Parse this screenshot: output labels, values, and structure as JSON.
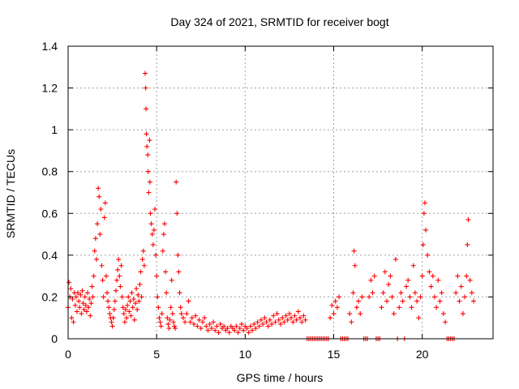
{
  "chart_data": {
    "type": "scatter",
    "title": "Day 324 of 2021, SRMTID for receiver bogt",
    "xlabel": "GPS time / hours",
    "ylabel": "SRMTID / TECUs",
    "xlim": [
      0,
      24
    ],
    "ylim": [
      0,
      1.4
    ],
    "grid": true,
    "marker": "+",
    "color": "#ff0000",
    "xticks": [
      0,
      5,
      10,
      15,
      20
    ],
    "xtick_labels": [
      "0",
      "5",
      "10",
      "15",
      "20"
    ],
    "yticks": [
      0,
      0.2,
      0.4,
      0.6,
      0.8,
      1.0,
      1.2,
      1.4
    ],
    "ytick_labels": [
      "0",
      "0.2",
      "0.4",
      "0.6",
      "0.8",
      "1",
      "1.2",
      "1.4"
    ],
    "series": [
      {
        "name": "SRMTID",
        "points": [
          [
            0.0,
            0.15
          ],
          [
            0.05,
            0.27
          ],
          [
            0.1,
            0.2
          ],
          [
            0.15,
            0.24
          ],
          [
            0.2,
            0.1
          ],
          [
            0.25,
            0.19
          ],
          [
            0.3,
            0.08
          ],
          [
            0.35,
            0.22
          ],
          [
            0.4,
            0.16
          ],
          [
            0.45,
            0.2
          ],
          [
            0.5,
            0.13
          ],
          [
            0.55,
            0.22
          ],
          [
            0.6,
            0.18
          ],
          [
            0.65,
            0.15
          ],
          [
            0.7,
            0.21
          ],
          [
            0.75,
            0.12
          ],
          [
            0.8,
            0.23
          ],
          [
            0.85,
            0.17
          ],
          [
            0.9,
            0.14
          ],
          [
            0.95,
            0.2
          ],
          [
            1.0,
            0.16
          ],
          [
            1.05,
            0.13
          ],
          [
            1.1,
            0.22
          ],
          [
            1.15,
            0.15
          ],
          [
            1.2,
            0.19
          ],
          [
            1.25,
            0.11
          ],
          [
            1.3,
            0.17
          ],
          [
            1.35,
            0.25
          ],
          [
            1.4,
            0.2
          ],
          [
            1.45,
            0.3
          ],
          [
            1.5,
            0.42
          ],
          [
            1.55,
            0.48
          ],
          [
            1.6,
            0.38
          ],
          [
            1.65,
            0.55
          ],
          [
            1.7,
            0.72
          ],
          [
            1.75,
            0.68
          ],
          [
            1.8,
            0.5
          ],
          [
            1.85,
            0.62
          ],
          [
            1.9,
            0.35
          ],
          [
            1.95,
            0.28
          ],
          [
            2.0,
            0.2
          ],
          [
            2.05,
            0.58
          ],
          [
            2.1,
            0.65
          ],
          [
            2.15,
            0.3
          ],
          [
            2.2,
            0.22
          ],
          [
            2.25,
            0.18
          ],
          [
            2.3,
            0.15
          ],
          [
            2.35,
            0.12
          ],
          [
            2.4,
            0.1
          ],
          [
            2.45,
            0.08
          ],
          [
            2.5,
            0.06
          ],
          [
            2.55,
            0.1
          ],
          [
            2.6,
            0.14
          ],
          [
            2.65,
            0.18
          ],
          [
            2.7,
            0.23
          ],
          [
            2.75,
            0.28
          ],
          [
            2.8,
            0.33
          ],
          [
            2.85,
            0.38
          ],
          [
            2.9,
            0.3
          ],
          [
            2.95,
            0.25
          ],
          [
            3.0,
            0.35
          ],
          [
            3.05,
            0.2
          ],
          [
            3.1,
            0.15
          ],
          [
            3.15,
            0.12
          ],
          [
            3.2,
            0.08
          ],
          [
            3.25,
            0.14
          ],
          [
            3.3,
            0.1
          ],
          [
            3.35,
            0.16
          ],
          [
            3.4,
            0.2
          ],
          [
            3.45,
            0.13
          ],
          [
            3.5,
            0.18
          ],
          [
            3.55,
            0.11
          ],
          [
            3.6,
            0.22
          ],
          [
            3.65,
            0.15
          ],
          [
            3.7,
            0.19
          ],
          [
            3.75,
            0.09
          ],
          [
            3.8,
            0.17
          ],
          [
            3.85,
            0.24
          ],
          [
            3.9,
            0.14
          ],
          [
            3.95,
            0.21
          ],
          [
            4.0,
            0.18
          ],
          [
            4.05,
            0.26
          ],
          [
            4.1,
            0.32
          ],
          [
            4.15,
            0.2
          ],
          [
            4.2,
            0.38
          ],
          [
            4.25,
            0.42
          ],
          [
            4.3,
            0.35
          ],
          [
            4.35,
            1.27
          ],
          [
            4.38,
            1.2
          ],
          [
            4.4,
            1.1
          ],
          [
            4.42,
            0.98
          ],
          [
            4.45,
            0.92
          ],
          [
            4.5,
            0.88
          ],
          [
            4.52,
            0.8
          ],
          [
            4.55,
            0.7
          ],
          [
            4.6,
            0.95
          ],
          [
            4.62,
            0.75
          ],
          [
            4.65,
            0.6
          ],
          [
            4.7,
            0.55
          ],
          [
            4.75,
            0.5
          ],
          [
            4.8,
            0.45
          ],
          [
            4.85,
            0.52
          ],
          [
            4.9,
            0.62
          ],
          [
            4.95,
            0.4
          ],
          [
            5.0,
            0.3
          ],
          [
            5.05,
            0.2
          ],
          [
            5.1,
            0.15
          ],
          [
            5.15,
            0.1
          ],
          [
            5.2,
            0.08
          ],
          [
            5.25,
            0.06
          ],
          [
            5.3,
            0.12
          ],
          [
            5.35,
            0.42
          ],
          [
            5.4,
            0.5
          ],
          [
            5.45,
            0.55
          ],
          [
            5.5,
            0.32
          ],
          [
            5.55,
            0.22
          ],
          [
            5.6,
            0.1
          ],
          [
            5.65,
            0.07
          ],
          [
            5.7,
            0.05
          ],
          [
            5.75,
            0.09
          ],
          [
            5.8,
            0.15
          ],
          [
            5.85,
            0.28
          ],
          [
            5.9,
            0.12
          ],
          [
            5.95,
            0.08
          ],
          [
            6.0,
            0.06
          ],
          [
            6.05,
            0.05
          ],
          [
            6.1,
            0.75
          ],
          [
            6.15,
            0.6
          ],
          [
            6.2,
            0.4
          ],
          [
            6.25,
            0.32
          ],
          [
            6.3,
            0.22
          ],
          [
            6.35,
            0.15
          ],
          [
            6.4,
            0.12
          ],
          [
            6.5,
            0.1
          ],
          [
            6.6,
            0.08
          ],
          [
            6.7,
            0.12
          ],
          [
            6.8,
            0.18
          ],
          [
            6.9,
            0.08
          ],
          [
            7.0,
            0.1
          ],
          [
            7.1,
            0.07
          ],
          [
            7.2,
            0.11
          ],
          [
            7.3,
            0.06
          ],
          [
            7.4,
            0.09
          ],
          [
            7.5,
            0.05
          ],
          [
            7.6,
            0.08
          ],
          [
            7.7,
            0.1
          ],
          [
            7.8,
            0.06
          ],
          [
            7.9,
            0.04
          ],
          [
            8.0,
            0.07
          ],
          [
            8.1,
            0.05
          ],
          [
            8.2,
            0.08
          ],
          [
            8.3,
            0.04
          ],
          [
            8.4,
            0.06
          ],
          [
            8.5,
            0.03
          ],
          [
            8.6,
            0.07
          ],
          [
            8.7,
            0.05
          ],
          [
            8.8,
            0.06
          ],
          [
            8.9,
            0.04
          ],
          [
            9.0,
            0.05
          ],
          [
            9.1,
            0.03
          ],
          [
            9.2,
            0.06
          ],
          [
            9.3,
            0.05
          ],
          [
            9.4,
            0.04
          ],
          [
            9.5,
            0.06
          ],
          [
            9.6,
            0.03
          ],
          [
            9.7,
            0.05
          ],
          [
            9.8,
            0.07
          ],
          [
            9.9,
            0.04
          ],
          [
            10.0,
            0.06
          ],
          [
            10.1,
            0.05
          ],
          [
            10.2,
            0.03
          ],
          [
            10.3,
            0.06
          ],
          [
            10.4,
            0.04
          ],
          [
            10.5,
            0.07
          ],
          [
            10.6,
            0.05
          ],
          [
            10.7,
            0.08
          ],
          [
            10.8,
            0.06
          ],
          [
            10.9,
            0.09
          ],
          [
            11.0,
            0.07
          ],
          [
            11.1,
            0.1
          ],
          [
            11.2,
            0.08
          ],
          [
            11.3,
            0.06
          ],
          [
            11.4,
            0.09
          ],
          [
            11.5,
            0.07
          ],
          [
            11.6,
            0.11
          ],
          [
            11.7,
            0.08
          ],
          [
            11.8,
            0.12
          ],
          [
            11.9,
            0.09
          ],
          [
            12.0,
            0.07
          ],
          [
            12.1,
            0.1
          ],
          [
            12.2,
            0.08
          ],
          [
            12.3,
            0.11
          ],
          [
            12.4,
            0.09
          ],
          [
            12.5,
            0.12
          ],
          [
            12.6,
            0.1
          ],
          [
            12.7,
            0.08
          ],
          [
            12.8,
            0.11
          ],
          [
            12.9,
            0.09
          ],
          [
            13.0,
            0.13
          ],
          [
            13.1,
            0.1
          ],
          [
            13.2,
            0.08
          ],
          [
            13.3,
            0.11
          ],
          [
            13.4,
            0.09
          ],
          [
            13.5,
            0.0
          ],
          [
            13.6,
            0.0
          ],
          [
            13.7,
            0.0
          ],
          [
            13.8,
            0.0
          ],
          [
            13.9,
            0.0
          ],
          [
            14.0,
            0.0
          ],
          [
            14.1,
            0.0
          ],
          [
            14.2,
            0.0
          ],
          [
            14.3,
            0.0
          ],
          [
            14.4,
            0.0
          ],
          [
            14.5,
            0.0
          ],
          [
            14.6,
            0.0
          ],
          [
            14.7,
            0.0
          ],
          [
            14.8,
            0.1
          ],
          [
            14.9,
            0.16
          ],
          [
            15.0,
            0.12
          ],
          [
            15.1,
            0.18
          ],
          [
            15.2,
            0.15
          ],
          [
            15.3,
            0.2
          ],
          [
            15.4,
            0.0
          ],
          [
            15.5,
            0.0
          ],
          [
            15.6,
            0.0
          ],
          [
            15.7,
            0.0
          ],
          [
            15.8,
            0.0
          ],
          [
            15.9,
            0.12
          ],
          [
            16.0,
            0.08
          ],
          [
            16.1,
            0.22
          ],
          [
            16.15,
            0.42
          ],
          [
            16.2,
            0.35
          ],
          [
            16.3,
            0.15
          ],
          [
            16.4,
            0.18
          ],
          [
            16.5,
            0.12
          ],
          [
            16.6,
            0.2
          ],
          [
            16.7,
            0.0
          ],
          [
            16.8,
            0.0
          ],
          [
            16.9,
            0.0
          ],
          [
            17.0,
            0.2
          ],
          [
            17.1,
            0.28
          ],
          [
            17.2,
            0.22
          ],
          [
            17.3,
            0.3
          ],
          [
            17.4,
            0.0
          ],
          [
            17.5,
            0.0
          ],
          [
            17.6,
            0.0
          ],
          [
            17.7,
            0.15
          ],
          [
            17.8,
            0.22
          ],
          [
            17.9,
            0.32
          ],
          [
            18.0,
            0.18
          ],
          [
            18.1,
            0.26
          ],
          [
            18.2,
            0.3
          ],
          [
            18.3,
            0.2
          ],
          [
            18.4,
            0.12
          ],
          [
            18.5,
            0.38
          ],
          [
            18.6,
            0.0
          ],
          [
            18.7,
            0.15
          ],
          [
            18.8,
            0.22
          ],
          [
            18.9,
            0.18
          ],
          [
            19.0,
            0.0
          ],
          [
            19.1,
            0.25
          ],
          [
            19.2,
            0.28
          ],
          [
            19.3,
            0.2
          ],
          [
            19.4,
            0.15
          ],
          [
            19.5,
            0.35
          ],
          [
            19.6,
            0.22
          ],
          [
            19.7,
            0.18
          ],
          [
            19.8,
            0.1
          ],
          [
            19.9,
            0.2
          ],
          [
            20.0,
            0.3
          ],
          [
            20.05,
            0.45
          ],
          [
            20.1,
            0.6
          ],
          [
            20.15,
            0.65
          ],
          [
            20.2,
            0.52
          ],
          [
            20.3,
            0.4
          ],
          [
            20.4,
            0.32
          ],
          [
            20.5,
            0.25
          ],
          [
            20.6,
            0.3
          ],
          [
            20.7,
            0.2
          ],
          [
            20.8,
            0.15
          ],
          [
            20.9,
            0.28
          ],
          [
            21.0,
            0.18
          ],
          [
            21.1,
            0.22
          ],
          [
            21.2,
            0.12
          ],
          [
            21.3,
            0.08
          ],
          [
            21.4,
            0.0
          ],
          [
            21.5,
            0.0
          ],
          [
            21.6,
            0.0
          ],
          [
            21.7,
            0.0
          ],
          [
            21.8,
            0.0
          ],
          [
            21.9,
            0.22
          ],
          [
            22.0,
            0.3
          ],
          [
            22.1,
            0.18
          ],
          [
            22.2,
            0.25
          ],
          [
            22.3,
            0.12
          ],
          [
            22.4,
            0.2
          ],
          [
            22.5,
            0.3
          ],
          [
            22.55,
            0.45
          ],
          [
            22.6,
            0.57
          ],
          [
            22.7,
            0.28
          ],
          [
            22.8,
            0.22
          ],
          [
            22.9,
            0.18
          ]
        ]
      }
    ]
  }
}
